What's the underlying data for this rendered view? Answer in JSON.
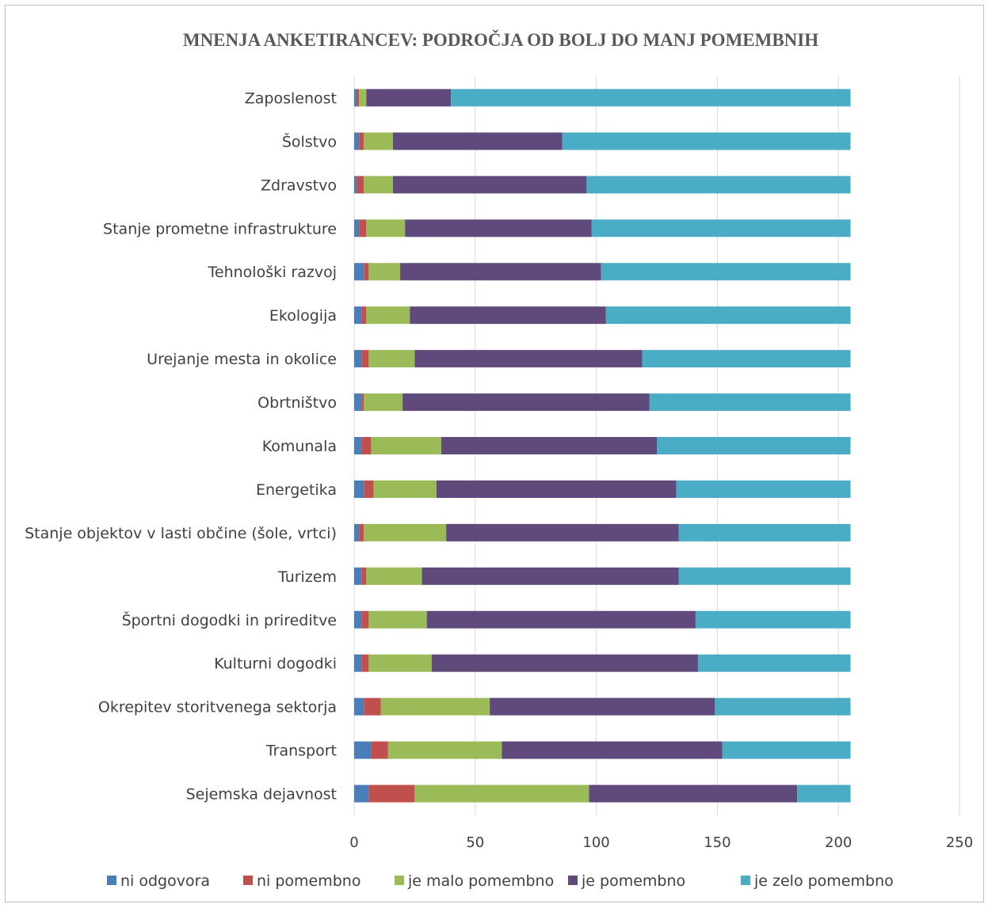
{
  "chart_data": {
    "type": "bar",
    "orientation": "horizontal",
    "stacked": true,
    "title": "MNENJA ANKETIRANCEV: PODROČJA OD BOLJ DO MANJ POMEMBNIH",
    "xlabel": "",
    "ylabel": "",
    "xlim": [
      0,
      250
    ],
    "x_ticks": [
      0,
      50,
      100,
      150,
      200,
      250
    ],
    "x_tick_labels": [
      "0",
      "50",
      "100",
      "150",
      "200",
      "250"
    ],
    "grid": true,
    "legend_position": "bottom",
    "categories": [
      "Zaposlenost",
      "Šolstvo",
      "Zdravstvo",
      "Stanje prometne infrastrukture",
      "Tehnološki razvoj",
      "Ekologija",
      "Urejanje mesta in okolice",
      "Obrtništvo",
      "Komunala",
      "Energetika",
      "Stanje objektov v lasti občine (šole, vrtci)",
      "Turizem",
      "Športni dogodki in prireditve",
      "Kulturni dogodki",
      "Okrepitev storitvenega sektorja",
      "Transport",
      "Sejemska dejavnost"
    ],
    "series": [
      {
        "name": "ni odgovora",
        "color": "#4a7ebb",
        "values": [
          1,
          2,
          1,
          2,
          4,
          3,
          3,
          3,
          3,
          4,
          2,
          3,
          3,
          3,
          4,
          7,
          6
        ]
      },
      {
        "name": "ni pomembno",
        "color": "#c0504d",
        "values": [
          1,
          2,
          3,
          3,
          2,
          2,
          3,
          1,
          4,
          4,
          2,
          2,
          3,
          3,
          7,
          7,
          19
        ]
      },
      {
        "name": "je malo pomembno",
        "color": "#9bbb59",
        "values": [
          3,
          12,
          12,
          16,
          13,
          18,
          19,
          16,
          29,
          26,
          34,
          23,
          24,
          26,
          45,
          47,
          72
        ]
      },
      {
        "name": "je pomembno",
        "color": "#604a7b",
        "values": [
          35,
          70,
          80,
          77,
          83,
          81,
          94,
          102,
          89,
          99,
          96,
          106,
          111,
          110,
          93,
          91,
          86
        ]
      },
      {
        "name": "je zelo pomembno",
        "color": "#4bacc6",
        "values": [
          165,
          119,
          109,
          107,
          103,
          101,
          86,
          83,
          80,
          72,
          71,
          71,
          64,
          63,
          56,
          53,
          22
        ]
      }
    ]
  }
}
